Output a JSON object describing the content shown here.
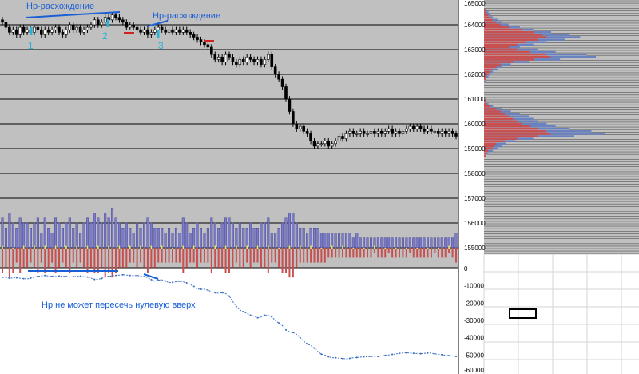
{
  "annotations": {
    "divergence_1": "Нр-расхождение",
    "divergence_2": "Нр-расхождение",
    "marker_1": "1",
    "marker_2": "2",
    "marker_3": "3",
    "note_bottom": "Нр не может пересечь нулевую вверх"
  },
  "colors": {
    "price_bg": "#c0c0c0",
    "grid": "#000000",
    "candle": "#000000",
    "volume_up": "#7b7bc8",
    "volume_down": "#c85050",
    "delta_marker": "#e8e860",
    "cumulative_line": "#3a6fc4",
    "annotation": "#1a5fd6",
    "marker": "#27b3d9",
    "profile_blue": "#6b82c0",
    "profile_red": "#c85050"
  },
  "chart_data": [
    {
      "type": "candlestick",
      "name": "price",
      "ylim": [
        155000,
        165000
      ],
      "yticks": [
        "165000",
        "164000",
        "163000",
        "162000",
        "161000",
        "160000",
        "159000",
        "158000",
        "157000",
        "156000",
        "155000"
      ],
      "close": [
        164100,
        163900,
        163700,
        163800,
        163600,
        163900,
        163700,
        163800,
        163700,
        163900,
        163800,
        163600,
        163800,
        163700,
        163800,
        163900,
        163700,
        163600,
        163800,
        164000,
        163800,
        163900,
        163700,
        163800,
        163900,
        164000,
        164200,
        164000,
        164100,
        164300,
        164200,
        164400,
        164300,
        164200,
        164100,
        163900,
        164000,
        163900,
        163800,
        163700,
        163800,
        163600,
        163700,
        163800,
        163900,
        163800,
        163700,
        163800,
        163700,
        163800,
        163700,
        163800,
        163700,
        163600,
        163500,
        163400,
        163300,
        163200,
        163100,
        162800,
        162600,
        162700,
        162500,
        162800,
        162700,
        162500,
        162400,
        162600,
        162500,
        162700,
        162600,
        162500,
        162600,
        162400,
        162600,
        162800,
        162300,
        162000,
        161800,
        161500,
        161000,
        160500,
        160000,
        159800,
        159900,
        159700,
        159600,
        159300,
        159100,
        159200,
        159200,
        159300,
        159100,
        159200,
        159300,
        159500,
        159400,
        159600,
        159700,
        159600,
        159600,
        159700,
        159600,
        159600,
        159700,
        159600,
        159700,
        159600,
        159700,
        159800,
        159600,
        159700,
        159600,
        159700,
        159800,
        159900,
        159800,
        159900,
        159800,
        159700,
        159800,
        159700,
        159700,
        159600,
        159700,
        159600,
        159700,
        159600,
        159500
      ]
    },
    {
      "type": "bar",
      "name": "volume",
      "up": [
        6,
        4,
        7,
        5,
        4,
        6,
        5,
        5,
        4,
        5,
        6,
        3,
        6,
        4,
        3,
        6,
        5,
        4,
        5,
        6,
        4,
        5,
        3,
        5,
        6,
        5,
        7,
        6,
        5,
        7,
        6,
        8,
        6,
        5,
        4,
        5,
        4,
        3,
        5,
        4,
        5,
        6,
        5,
        4,
        4,
        4,
        3,
        4,
        3,
        4,
        3,
        6,
        5,
        3,
        4,
        5,
        4,
        3,
        4,
        6,
        5,
        4,
        5,
        6,
        6,
        5,
        4,
        5,
        4,
        4,
        5,
        4,
        4,
        5,
        5,
        6,
        3,
        3,
        4,
        5,
        6,
        7,
        7,
        5,
        4,
        4,
        3,
        4,
        4,
        4,
        3,
        3,
        3,
        3,
        3,
        3,
        3,
        3,
        3,
        2,
        3,
        2,
        2,
        2,
        2,
        2,
        2,
        2,
        2,
        2,
        2,
        2,
        2,
        2,
        2,
        2,
        2,
        2,
        2,
        2,
        2,
        2,
        2,
        2,
        2,
        2,
        2,
        2,
        3
      ],
      "down": [
        -5,
        -4,
        -6,
        -5,
        -3,
        -5,
        -4,
        -4,
        -3,
        -4,
        -5,
        -3,
        -5,
        -4,
        -3,
        -5,
        -4,
        -3,
        -4,
        -5,
        -3,
        -4,
        -3,
        -4,
        -5,
        -4,
        -5,
        -5,
        -4,
        -6,
        -5,
        -6,
        -5,
        -4,
        -4,
        -4,
        -3,
        -3,
        -4,
        -3,
        -4,
        -5,
        -4,
        -4,
        -3,
        -3,
        -3,
        -3,
        -3,
        -3,
        -3,
        -5,
        -4,
        -3,
        -3,
        -4,
        -3,
        -3,
        -3,
        -5,
        -4,
        -4,
        -4,
        -5,
        -5,
        -4,
        -3,
        -4,
        -4,
        -3,
        -4,
        -3,
        -3,
        -4,
        -4,
        -5,
        -3,
        -3,
        -4,
        -5,
        -5,
        -6,
        -6,
        -4,
        -3,
        -3,
        -3,
        -3,
        -3,
        -3,
        -3,
        -3,
        -2,
        -2,
        -2,
        -2,
        -2,
        -2,
        -2,
        -2,
        -2,
        -2,
        -2,
        -2,
        -2,
        -1,
        -2,
        -2,
        -2,
        -1,
        -2,
        -2,
        -2,
        -2,
        -2,
        -1,
        -2,
        -2,
        -2,
        -2,
        -2,
        -2,
        -1,
        -2,
        -2,
        -2,
        -1,
        -2,
        -3
      ]
    },
    {
      "type": "line",
      "name": "cumulative",
      "ylim": [
        -60000,
        0
      ],
      "yticks": [
        "0",
        "-10000",
        "-20000",
        "-30000",
        "-40000",
        "-50000",
        "-60000"
      ],
      "values": [
        -5000,
        -5200,
        -5600,
        -5400,
        -5300,
        -5600,
        -5800,
        -6000,
        -5500,
        -5000,
        -4500,
        -4200,
        -4000,
        -4300,
        -4500,
        -4600,
        -4300,
        -4400,
        -4600,
        -4900,
        -4700,
        -4500,
        -4400,
        -4700,
        -4900,
        -5500,
        -6300,
        -6200,
        -5700,
        -4800,
        -4500,
        -4200,
        -4000,
        -3800,
        -3600,
        -3800,
        -4000,
        -4100,
        -4000,
        -4400,
        -4700,
        -5200,
        -6400,
        -7300,
        -6700,
        -6500,
        -7200,
        -8200,
        -8000,
        -7600,
        -7300,
        -7700,
        -8300,
        -9300,
        -10300,
        -11800,
        -12000,
        -11900,
        -12500,
        -13500,
        -14000,
        -14300,
        -14000,
        -14500,
        -16000,
        -19000,
        -22000,
        -24000,
        -25000,
        -26000,
        -27000,
        -27500,
        -28500,
        -28000,
        -27000,
        -27200,
        -28000,
        -30000,
        -31500,
        -33000,
        -35500,
        -36500,
        -37000,
        -38000,
        -40000,
        -42000,
        -43500,
        -44500,
        -46000,
        -48000,
        -49500,
        -50000,
        -51000,
        -51500,
        -51600,
        -51800,
        -52000,
        -52200,
        -51900,
        -51600,
        -51400,
        -51200,
        -51000,
        -51000,
        -50800,
        -50700,
        -50800,
        -50500,
        -50200,
        -50000,
        -49600,
        -49400,
        -49000,
        -48800,
        -48700,
        -48900,
        -49000,
        -49100,
        -49200,
        -49000,
        -48800,
        -48900,
        -49300,
        -49600,
        -49800,
        -50100,
        -50300,
        -50500,
        -50800
      ]
    },
    {
      "type": "bar",
      "name": "price-profile",
      "ylim": [
        155000,
        165000
      ],
      "bins": [
        165000,
        164900,
        164800,
        164700,
        164600,
        164500,
        164400,
        164300,
        164200,
        164100,
        164000,
        163900,
        163800,
        163700,
        163600,
        163500,
        163400,
        163300,
        163200,
        163100,
        163000,
        162900,
        162800,
        162700,
        162600,
        162500,
        162400,
        162300,
        162200,
        162100,
        162000,
        161900,
        161800,
        161700,
        161600,
        161500,
        161400,
        161300,
        161200,
        161100,
        161000,
        160900,
        160800,
        160700,
        160600,
        160500,
        160400,
        160300,
        160200,
        160100,
        160000,
        159900,
        159800,
        159700,
        159600,
        159500,
        159400,
        159300,
        159200,
        159100,
        159000,
        158900,
        158800,
        158700,
        158600,
        158500,
        158400,
        158300,
        158200,
        158100,
        158000,
        157900,
        157800,
        157700,
        157600,
        157500,
        157400,
        157300,
        157200,
        157100,
        157000,
        156900,
        156800,
        156700,
        156600,
        156500,
        156400,
        156300,
        156200,
        156100,
        156000,
        155900,
        155800,
        155700,
        155600,
        155500,
        155400,
        155300,
        155200,
        155100,
        155000
      ],
      "blue": [
        0,
        0,
        0,
        0,
        1,
        2,
        3,
        4,
        6,
        8,
        11,
        16,
        22,
        30,
        38,
        43,
        36,
        28,
        22,
        16,
        24,
        32,
        46,
        50,
        34,
        20,
        12,
        8,
        6,
        4,
        3,
        2,
        1,
        1,
        0,
        0,
        0,
        0,
        0,
        0,
        0,
        1,
        2,
        4,
        8,
        12,
        16,
        20,
        22,
        24,
        28,
        32,
        38,
        48,
        54,
        40,
        22,
        14,
        10,
        8,
        6,
        4,
        2,
        1,
        0,
        0,
        0,
        0,
        0,
        0,
        0,
        0,
        0,
        0,
        0,
        0,
        0,
        0,
        0,
        0,
        0,
        0,
        0,
        0,
        0,
        0,
        0,
        0,
        0,
        0,
        0,
        0,
        0,
        0,
        0,
        0,
        0,
        0,
        0,
        0,
        0
      ],
      "red": [
        0,
        0,
        0,
        0,
        1,
        1,
        2,
        3,
        4,
        6,
        8,
        12,
        18,
        24,
        28,
        30,
        26,
        20,
        16,
        12,
        16,
        22,
        30,
        32,
        24,
        14,
        8,
        6,
        4,
        3,
        2,
        1,
        1,
        0,
        0,
        0,
        0,
        0,
        0,
        0,
        0,
        1,
        1,
        3,
        6,
        8,
        10,
        12,
        14,
        16,
        18,
        22,
        26,
        30,
        32,
        26,
        16,
        10,
        6,
        5,
        4,
        2,
        1,
        1,
        0,
        0,
        0,
        0,
        0,
        0,
        0,
        0,
        0,
        0,
        0,
        0,
        0,
        0,
        0,
        0,
        0,
        0,
        0,
        0,
        0,
        0,
        0,
        0,
        0,
        0,
        0,
        0,
        0,
        0,
        0,
        0,
        0,
        0,
        0,
        0,
        0
      ]
    }
  ]
}
